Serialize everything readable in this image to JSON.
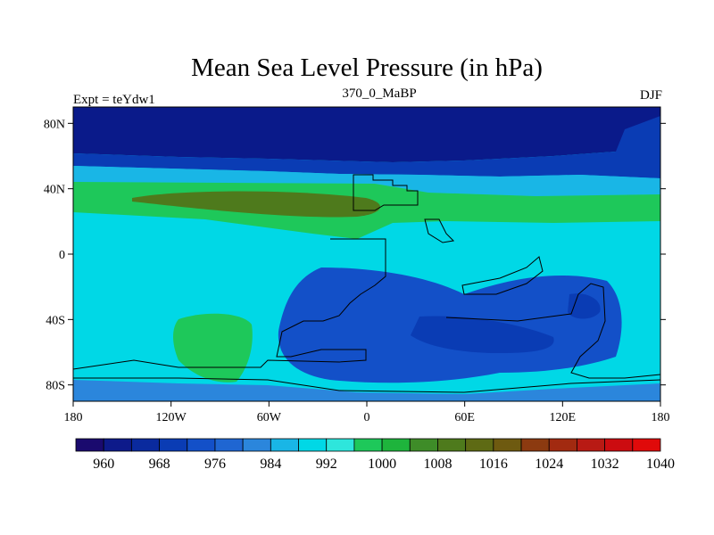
{
  "title": "Mean Sea Level Pressure (in hPa)",
  "experiment_label": "Expt = teYdw1",
  "period_label": "370_0_MaBP",
  "season_label": "DJF",
  "map": {
    "lon_range": [
      -180,
      180
    ],
    "lat_range": [
      -90,
      90
    ],
    "lat_ticks": [
      {
        "value": 80,
        "label": "80N"
      },
      {
        "value": 40,
        "label": "40N"
      },
      {
        "value": 0,
        "label": "0"
      },
      {
        "value": -40,
        "label": "40S"
      },
      {
        "value": -80,
        "label": "80S"
      }
    ],
    "lon_ticks": [
      {
        "value": -180,
        "label": "180"
      },
      {
        "value": -120,
        "label": "120W"
      },
      {
        "value": -60,
        "label": "60W"
      },
      {
        "value": 0,
        "label": "0"
      },
      {
        "value": 60,
        "label": "60E"
      },
      {
        "value": 120,
        "label": "120E"
      },
      {
        "value": 180,
        "label": "180"
      }
    ]
  },
  "colorbar": {
    "colors": [
      "#1a0a6e",
      "#0d1a8a",
      "#0a2a9e",
      "#0a3cb4",
      "#1350c8",
      "#1f66d2",
      "#2b86dc",
      "#19b6e6",
      "#00d8e6",
      "#2ee6dc",
      "#1ec85a",
      "#1eb43c",
      "#3e8c28",
      "#4e7a1c",
      "#5e6a14",
      "#6e5a10",
      "#8c3a10",
      "#a22a10",
      "#b81a14",
      "#cc0c10",
      "#e00a0a"
    ],
    "labels": [
      {
        "after_index": 1,
        "text": "960"
      },
      {
        "after_index": 3,
        "text": "968"
      },
      {
        "after_index": 5,
        "text": "976"
      },
      {
        "after_index": 7,
        "text": "984"
      },
      {
        "after_index": 9,
        "text": "992"
      },
      {
        "after_index": 11,
        "text": "1000"
      },
      {
        "after_index": 13,
        "text": "1008"
      },
      {
        "after_index": 15,
        "text": "1016"
      },
      {
        "after_index": 17,
        "text": "1024"
      },
      {
        "after_index": 19,
        "text": "1032"
      },
      {
        "after_index": 21,
        "text": "1040"
      }
    ]
  },
  "fields": [
    {
      "name": "background-band",
      "color": "#00d8e6"
    },
    {
      "name": "polar-low-band",
      "color": "#0a1a8a"
    },
    {
      "name": "subpolar-band",
      "color": "#0a3cb4"
    },
    {
      "name": "transition-band",
      "color": "#19b6e6"
    },
    {
      "name": "subtropical-high",
      "color": "#1ec85a"
    },
    {
      "name": "subtropical-high-core",
      "color": "#4e7a1c"
    },
    {
      "name": "southern-low",
      "color": "#1350c8"
    },
    {
      "name": "southern-low-core",
      "color": "#0a3cb4"
    },
    {
      "name": "southern-high",
      "color": "#1ec85a"
    },
    {
      "name": "southern-ocean-band",
      "color": "#2b86dc"
    }
  ]
}
